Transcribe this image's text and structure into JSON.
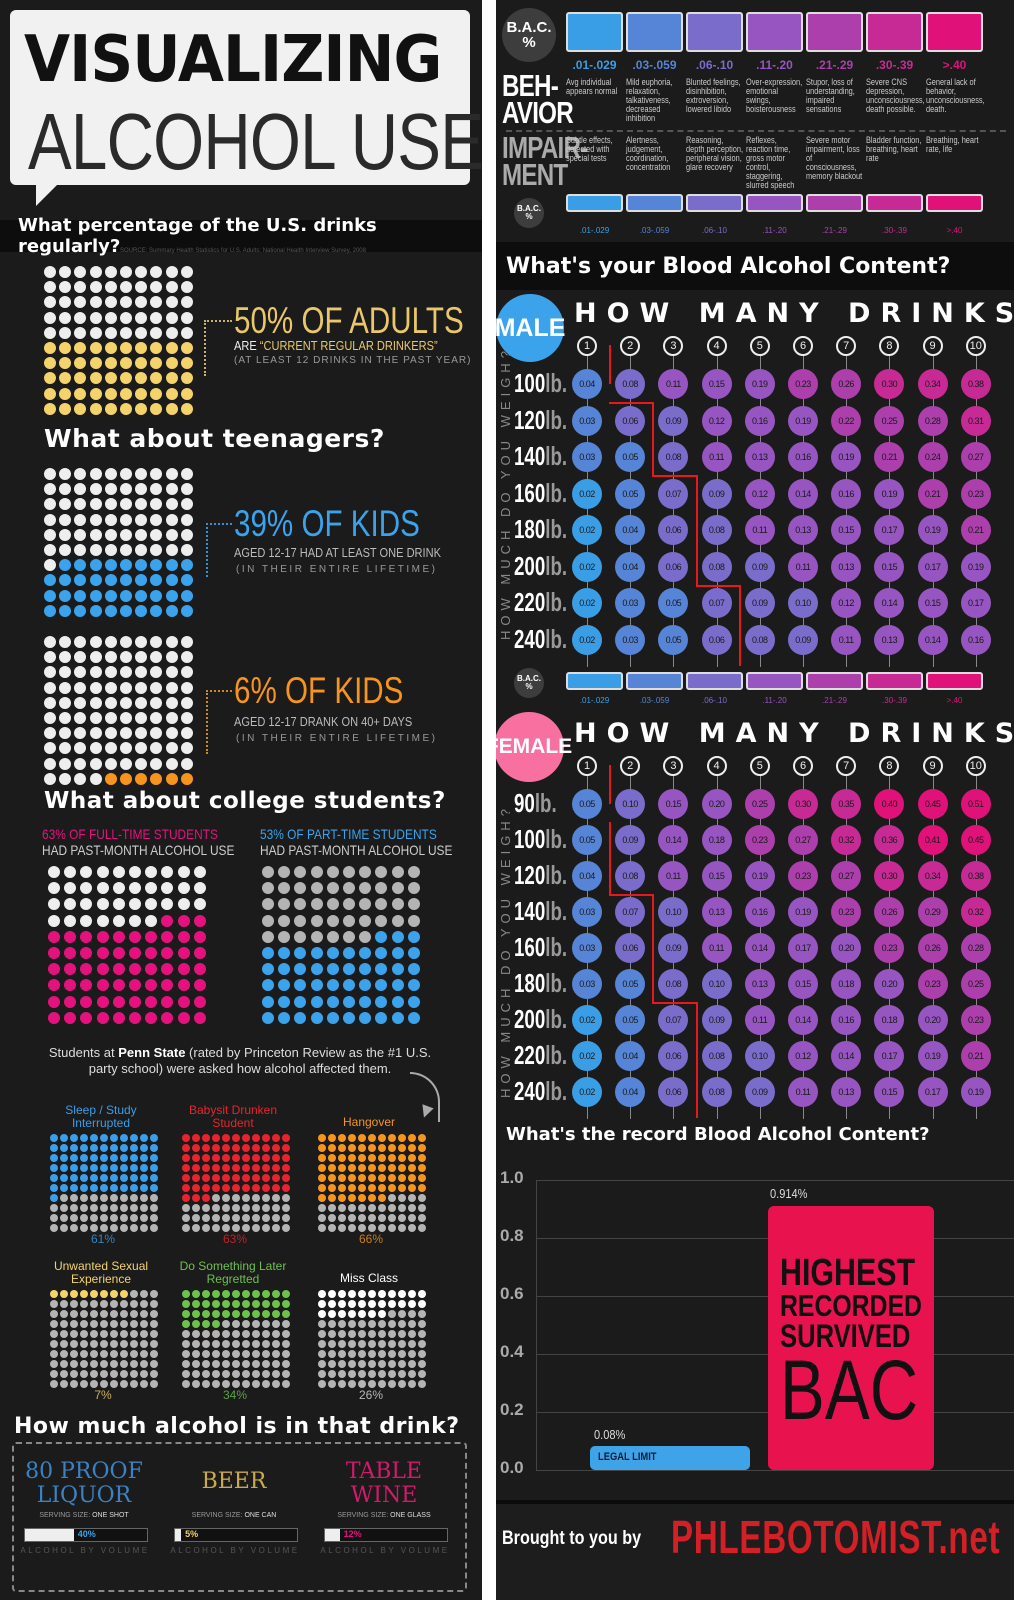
{
  "title": {
    "line1": "VISUALIZING",
    "line2": "ALCOHOL USE"
  },
  "colors": {
    "white_dot": "#eeeeee",
    "grey_dot": "#b4b4b4",
    "yellow": "#f5d36b",
    "blue": "#3aa3ec",
    "orange": "#f7941d",
    "pink": "#e5127e",
    "red": "#e8232d",
    "green": "#6cc24a",
    "legal_line": "#e8191e"
  },
  "us": {
    "heading": "What percentage of the U.S. drinks regularly?",
    "source": "SOURCE: Summary Health Statistics for U.S. Adults: National Health Interview Survey, 2008",
    "big": "50% OF ADULTS",
    "sub_pre": "ARE",
    "sub_quote": "“CURRENT REGULAR DRINKERS”",
    "sub2": "(AT LEAST 12 DRINKS IN THE PAST YEAR)"
  },
  "teens": {
    "heading": "What about teenagers?",
    "a_big": "39% OF KIDS",
    "a_sub": "AGED 12-17 HAD AT LEAST ONE DRINK",
    "a_sub2": "(IN THEIR ENTIRE LIFETIME)",
    "b_big": "6% OF KIDS",
    "b_sub": "AGED 12-17 DRANK ON 40+ DAYS",
    "b_sub2": "(IN THEIR ENTIRE LIFETIME)"
  },
  "college": {
    "heading": "What about college students?",
    "ft_label": "63% OF FULL-TIME STUDENTS",
    "ft_sub": "HAD PAST-MONTH ALCOHOL USE",
    "pt_label": "53% OF PART-TIME STUDENTS",
    "pt_sub": "HAD PAST-MONTH ALCOHOL USE"
  },
  "pennstate": {
    "text_pre": "Students at ",
    "text_bold": "Penn State",
    "text_post": " (rated by Princeton Review as the #1 U.S. party school) were asked how alcohol affected them.",
    "items": [
      {
        "label": "Sleep / Study Interrupted",
        "pct": "61%",
        "value": 61,
        "color": "#3a9eea"
      },
      {
        "label": "Babysit Drunken Student",
        "pct": "63%",
        "value": 63,
        "color": "#e8232d"
      },
      {
        "label": "Hangover",
        "pct": "66%",
        "value": 66,
        "color": "#f7941d"
      },
      {
        "label": "Unwanted Sexual Experience",
        "pct": "7%",
        "value": 7,
        "color": "#f5d36b"
      },
      {
        "label": "Do Something Later Regretted",
        "pct": "34%",
        "value": 34,
        "color": "#6cc24a"
      },
      {
        "label": "Miss Class",
        "pct": "26%",
        "value": 26,
        "color": "#ffffff"
      }
    ]
  },
  "drinks": {
    "heading": "How much alcohol is in that drink?",
    "items": [
      {
        "name": "80 PROOF LIQUOR",
        "serving_label": "SERVING SIZE:",
        "serving": "ONE SHOT",
        "abv": "40%",
        "value": 40,
        "color": "#3a82c4"
      },
      {
        "name": "BEER",
        "serving_label": "SERVING SIZE:",
        "serving": "ONE CAN",
        "abv": "5%",
        "value": 5,
        "color": "#c9a94a"
      },
      {
        "name": "TABLE WINE",
        "serving_label": "SERVING SIZE:",
        "serving": "ONE GLASS",
        "abv": "12%",
        "value": 12,
        "color": "#d21a6b"
      }
    ],
    "abv_label": "ALCOHOL BY VOLUME"
  },
  "bac_scale": {
    "badge": "B.A.C. %",
    "ranges": [
      ".01-.029",
      ".03-.059",
      ".06-.10",
      ".11-.20",
      ".21-.29",
      ".30-.39",
      ">.40"
    ],
    "colors": [
      "#3a9ee6",
      "#5684d6",
      "#7a6ccb",
      "#9655c0",
      "#ad3fad",
      "#c82a95",
      "#e0127a"
    ],
    "behavior_title": "BEH- AVIOR",
    "behavior": [
      "Avg individual appears normal",
      "Mild euphoria, relaxation, talkativeness, decreased inhibition",
      "Blunted feelings, disinhibition, extroversion, lowered libido",
      "Over-expression, emotional swings, boisterousness",
      "Stupor, loss of understanding, impaired sensations",
      "Severe CNS depression, unconsciousness, death possible.",
      "General lack of behavior, unconsciousness, death."
    ],
    "impairment_title": "IMPAIR- MENT",
    "impairment": [
      "Subtle effects, detected with special tests",
      "Alertness, judgement, coordination, concentration",
      "Reasoning, depth perception, peripheral vision, glare recovery",
      "Reflexes, reaction time, gross motor control, staggering, slurred speech",
      "Severe motor impairment, loss of consciousness, memory blackout",
      "Bladder function, breathing, heart rate",
      "Breathing, heart rate, life"
    ]
  },
  "bac_heading": "What's your Blood Alcohol Content?",
  "how_many": "HOW MANY DRINKS?",
  "weigh_label": "HOW MUCH DO YOU WEIGH?",
  "drink_numbers": [
    "1",
    "2",
    "3",
    "4",
    "5",
    "6",
    "7",
    "8",
    "9",
    "10"
  ],
  "male": {
    "label": "MALE",
    "color": "#3aa3ec",
    "weights": [
      "100",
      "120",
      "140",
      "160",
      "180",
      "200",
      "220",
      "240"
    ],
    "unit": "lb.",
    "rows": [
      [
        "0.04",
        "0.08",
        "0.11",
        "0.15",
        "0.19",
        "0.23",
        "0.26",
        "0.30",
        "0.34",
        "0.38"
      ],
      [
        "0.03",
        "0.06",
        "0.09",
        "0.12",
        "0.16",
        "0.19",
        "0.22",
        "0.25",
        "0.28",
        "0.31"
      ],
      [
        "0.03",
        "0.05",
        "0.08",
        "0.11",
        "0.13",
        "0.16",
        "0.19",
        "0.21",
        "0.24",
        "0.27"
      ],
      [
        "0.02",
        "0.05",
        "0.07",
        "0.09",
        "0.12",
        "0.14",
        "0.16",
        "0.19",
        "0.21",
        "0.23"
      ],
      [
        "0.02",
        "0.04",
        "0.06",
        "0.08",
        "0.11",
        "0.13",
        "0.15",
        "0.17",
        "0.19",
        "0.21"
      ],
      [
        "0.02",
        "0.04",
        "0.06",
        "0.08",
        "0.09",
        "0.11",
        "0.13",
        "0.15",
        "0.17",
        "0.19"
      ],
      [
        "0.02",
        "0.03",
        "0.05",
        "0.07",
        "0.09",
        "0.10",
        "0.12",
        "0.14",
        "0.15",
        "0.17"
      ],
      [
        "0.02",
        "0.03",
        "0.05",
        "0.06",
        "0.08",
        "0.09",
        "0.11",
        "0.13",
        "0.14",
        "0.16"
      ]
    ]
  },
  "female": {
    "label": "FEMALE",
    "color": "#f7709f",
    "weights": [
      "90",
      "100",
      "120",
      "140",
      "160",
      "180",
      "200",
      "220",
      "240"
    ],
    "unit": "lb.",
    "rows": [
      [
        "0.05",
        "0.10",
        "0.15",
        "0.20",
        "0.25",
        "0.30",
        "0.35",
        "0.40",
        "0.45",
        "0.51"
      ],
      [
        "0.05",
        "0.09",
        "0.14",
        "0.18",
        "0.23",
        "0.27",
        "0.32",
        "0.36",
        "0.41",
        "0.45"
      ],
      [
        "0.04",
        "0.08",
        "0.11",
        "0.15",
        "0.19",
        "0.23",
        "0.27",
        "0.30",
        "0.34",
        "0.38"
      ],
      [
        "0.03",
        "0.07",
        "0.10",
        "0.13",
        "0.16",
        "0.19",
        "0.23",
        "0.26",
        "0.29",
        "0.32"
      ],
      [
        "0.03",
        "0.06",
        "0.09",
        "0.11",
        "0.14",
        "0.17",
        "0.20",
        "0.23",
        "0.26",
        "0.28"
      ],
      [
        "0.03",
        "0.05",
        "0.08",
        "0.10",
        "0.13",
        "0.15",
        "0.18",
        "0.20",
        "0.23",
        "0.25"
      ],
      [
        "0.02",
        "0.05",
        "0.07",
        "0.09",
        "0.11",
        "0.14",
        "0.16",
        "0.18",
        "0.20",
        "0.23"
      ],
      [
        "0.02",
        "0.04",
        "0.06",
        "0.08",
        "0.10",
        "0.12",
        "0.14",
        "0.17",
        "0.19",
        "0.21"
      ],
      [
        "0.02",
        "0.04",
        "0.06",
        "0.08",
        "0.09",
        "0.11",
        "0.13",
        "0.15",
        "0.17",
        "0.19"
      ]
    ]
  },
  "record": {
    "heading": "What's the record Blood Alcohol Content?",
    "yticks": [
      "1.0",
      "0.8",
      "0.6",
      "0.4",
      "0.2",
      "0.0"
    ],
    "legal_value": "0.08%",
    "legal_label": "LEGAL LIMIT",
    "record_value": "0.914%",
    "record_l1": "HIGHEST",
    "record_l2": "RECORDED",
    "record_l3": "SURVIVED",
    "record_l4": "BAC"
  },
  "footer": {
    "brought": "Brought to you by",
    "brand": "PHLEBOTOMIST.net"
  },
  "chart_data": [
    {
      "type": "table",
      "title": "What percentage of the U.S. drinks regularly?",
      "categories": [
        "Current regular drinkers (adults)"
      ],
      "values": [
        50
      ],
      "unit": "%"
    },
    {
      "type": "table",
      "title": "What about teenagers?",
      "categories": [
        "Aged 12-17 had at least one drink",
        "Aged 12-17 drank on 40+ days"
      ],
      "values": [
        39,
        6
      ],
      "unit": "%"
    },
    {
      "type": "table",
      "title": "What about college students?",
      "categories": [
        "Full-time students past-month use",
        "Part-time students past-month use"
      ],
      "values": [
        63,
        53
      ],
      "unit": "%"
    },
    {
      "type": "table",
      "title": "Penn State students: how alcohol affected them",
      "categories": [
        "Sleep / Study Interrupted",
        "Babysit Drunken Student",
        "Hangover",
        "Unwanted Sexual Experience",
        "Do Something Later Regretted",
        "Miss Class"
      ],
      "values": [
        61,
        63,
        66,
        7,
        34,
        26
      ],
      "unit": "%"
    },
    {
      "type": "bar",
      "title": "How much alcohol is in that drink?",
      "categories": [
        "80 Proof Liquor",
        "Beer",
        "Table Wine"
      ],
      "values": [
        40,
        5,
        12
      ],
      "ylabel": "Alcohol by volume (%)"
    },
    {
      "type": "heatmap",
      "title": "Male BAC: How many drinks?",
      "x": [
        1,
        2,
        3,
        4,
        5,
        6,
        7,
        8,
        9,
        10
      ],
      "y": [
        "100lb",
        "120lb",
        "140lb",
        "160lb",
        "180lb",
        "200lb",
        "220lb",
        "240lb"
      ],
      "xlabel": "How many drinks?",
      "ylabel": "How much do you weigh?"
    },
    {
      "type": "heatmap",
      "title": "Female BAC: How many drinks?",
      "x": [
        1,
        2,
        3,
        4,
        5,
        6,
        7,
        8,
        9,
        10
      ],
      "y": [
        "90lb",
        "100lb",
        "120lb",
        "140lb",
        "160lb",
        "180lb",
        "200lb",
        "220lb",
        "240lb"
      ],
      "xlabel": "How many drinks?",
      "ylabel": "How much do you weigh?"
    },
    {
      "type": "bar",
      "title": "What's the record Blood Alcohol Content?",
      "categories": [
        "Legal Limit",
        "Highest Recorded Survived BAC"
      ],
      "values": [
        0.08,
        0.914
      ],
      "ylim": [
        0,
        1.0
      ],
      "yticks": [
        0,
        0.2,
        0.4,
        0.6,
        0.8,
        1.0
      ],
      "grid": true
    }
  ]
}
